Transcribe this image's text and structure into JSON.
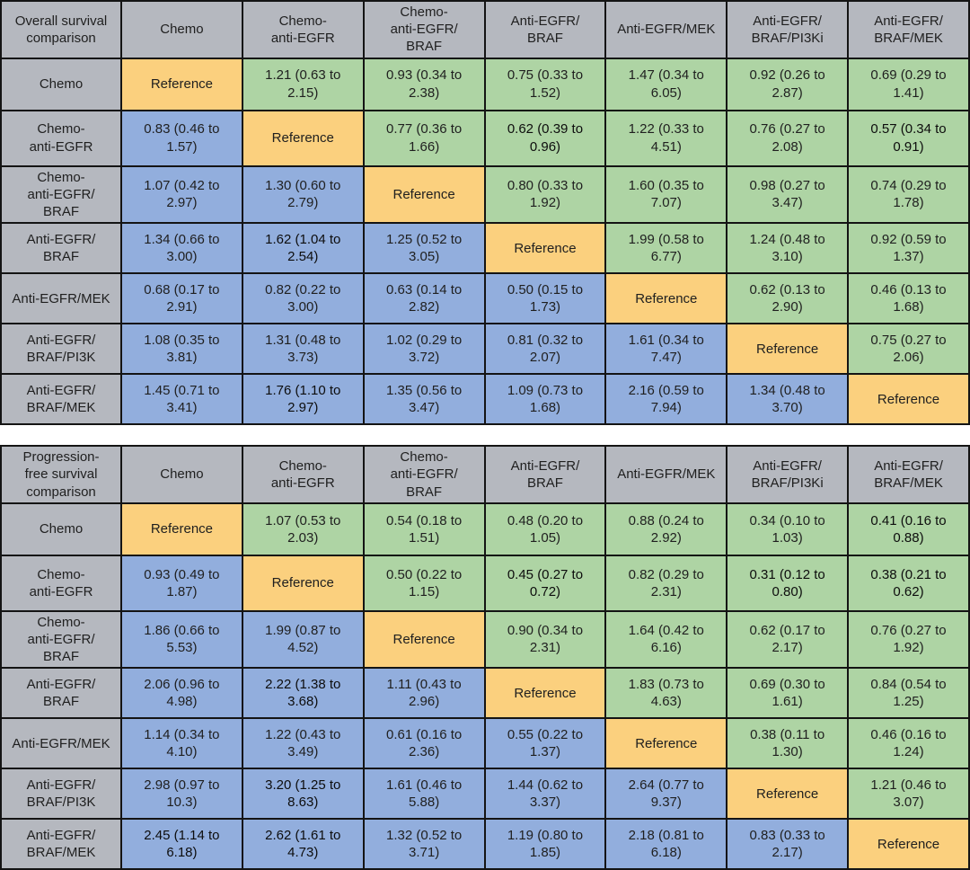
{
  "colors": {
    "header_gray": "#b5b8bf",
    "upper_triangle_green": "#aed4a4",
    "lower_triangle_blue": "#92aedd",
    "reference_orange": "#fbd07e",
    "grid_border": "#141414",
    "text": "#1f1f1f"
  },
  "reference_label": "Reference",
  "chart_data": [
    {
      "type": "table",
      "title": "Overall survival\ncomparison",
      "col_headers": [
        "Chemo",
        "Chemo-\nanti-EGFR",
        "Chemo-\nanti-EGFR/\nBRAF",
        "Anti-EGFR/\nBRAF",
        "Anti-EGFR/MEK",
        "Anti-EGFR/\nBRAF/PI3Ki",
        "Anti-EGFR/\nBRAF/MEK"
      ],
      "row_headers": [
        "Chemo",
        "Chemo-\nanti-EGFR",
        "Chemo-\nanti-EGFR/\nBRAF",
        "Anti-EGFR/\nBRAF",
        "Anti-EGFR/MEK",
        "Anti-EGFR/\nBRAF/PI3K",
        "Anti-EGFR/\nBRAF/MEK"
      ],
      "cells": [
        [
          "Reference",
          "1.21 (0.63 to 2.15)",
          "0.93 (0.34 to 2.38)",
          "0.75 (0.33 to 1.52)",
          "1.47 (0.34 to 6.05)",
          "0.92 (0.26 to 2.87)",
          "0.69 (0.29 to 1.41)"
        ],
        [
          "0.83 (0.46 to 1.57)",
          "Reference",
          "0.77 (0.36 to 1.66)",
          "0.62 (0.39 to 0.96)",
          "1.22 (0.33 to 4.51)",
          "0.76 (0.27 to 2.08)",
          "0.57 (0.34 to 0.91)"
        ],
        [
          "1.07 (0.42 to 2.97)",
          "1.30 (0.60 to 2.79)",
          "Reference",
          "0.80 (0.33 to 1.92)",
          "1.60 (0.35 to 7.07)",
          "0.98 (0.27 to 3.47)",
          "0.74 (0.29 to 1.78)"
        ],
        [
          "1.34 (0.66 to 3.00)",
          "1.62 (1.04 to 2.54)",
          "1.25 (0.52 to 3.05)",
          "Reference",
          "1.99 (0.58 to 6.77)",
          "1.24 (0.48 to 3.10)",
          "0.92 (0.59 to 1.37)"
        ],
        [
          "0.68 (0.17 to 2.91)",
          "0.82 (0.22 to 3.00)",
          "0.63 (0.14 to 2.82)",
          "0.50 (0.15 to 1.73)",
          "Reference",
          "0.62 (0.13 to 2.90)",
          "0.46 (0.13 to 1.68)"
        ],
        [
          "1.08 (0.35 to 3.81)",
          "1.31 (0.48 to 3.73)",
          "1.02 (0.29 to 3.72)",
          "0.81 (0.32 to 2.07)",
          "1.61 (0.34 to 7.47)",
          "Reference",
          "0.75 (0.27 to 2.06)"
        ],
        [
          "1.45 (0.71 to 3.41)",
          "1.76 (1.10 to 2.97)",
          "1.35 (0.56 to 3.47)",
          "1.09 (0.73 to 1.68)",
          "2.16 (0.59 to 7.94)",
          "1.34 (0.48 to 3.70)",
          "Reference"
        ]
      ],
      "bold_cells": [
        [
          1,
          3
        ],
        [
          1,
          6
        ],
        [
          3,
          1
        ],
        [
          6,
          1
        ]
      ]
    },
    {
      "type": "table",
      "title": "Progression-\nfree survival\ncomparison",
      "col_headers": [
        "Chemo",
        "Chemo-\nanti-EGFR",
        "Chemo-\nanti-EGFR/\nBRAF",
        "Anti-EGFR/\nBRAF",
        "Anti-EGFR/MEK",
        "Anti-EGFR/\nBRAF/PI3Ki",
        "Anti-EGFR/\nBRAF/MEK"
      ],
      "row_headers": [
        "Chemo",
        "Chemo-\nanti-EGFR",
        "Chemo-\nanti-EGFR/\nBRAF",
        "Anti-EGFR/\nBRAF",
        "Anti-EGFR/MEK",
        "Anti-EGFR/\nBRAF/PI3K",
        "Anti-EGFR/\nBRAF/MEK"
      ],
      "cells": [
        [
          "Reference",
          "1.07 (0.53 to 2.03)",
          "0.54 (0.18 to 1.51)",
          "0.48 (0.20 to 1.05)",
          "0.88 (0.24 to 2.92)",
          "0.34 (0.10 to 1.03)",
          "0.41 (0.16 to 0.88)"
        ],
        [
          "0.93 (0.49 to 1.87)",
          "Reference",
          "0.50 (0.22 to 1.15)",
          "0.45 (0.27 to 0.72)",
          "0.82 (0.29 to 2.31)",
          "0.31 (0.12 to 0.80)",
          "0.38 (0.21 to 0.62)"
        ],
        [
          "1.86 (0.66 to 5.53)",
          "1.99 (0.87 to 4.52)",
          "Reference",
          "0.90 (0.34 to 2.31)",
          "1.64 (0.42 to 6.16)",
          "0.62 (0.17 to 2.17)",
          "0.76 (0.27 to 1.92)"
        ],
        [
          "2.06 (0.96 to 4.98)",
          "2.22 (1.38 to 3.68)",
          "1.11 (0.43 to 2.96)",
          "Reference",
          "1.83 (0.73 to 4.63)",
          "0.69 (0.30 to 1.61)",
          "0.84 (0.54 to 1.25)"
        ],
        [
          "1.14 (0.34 to 4.10)",
          "1.22 (0.43 to 3.49)",
          "0.61 (0.16 to 2.36)",
          "0.55 (0.22 to 1.37)",
          "Reference",
          "0.38 (0.11 to 1.30)",
          "0.46 (0.16 to 1.24)"
        ],
        [
          "2.98 (0.97 to 10.3)",
          "3.20 (1.25 to 8.63)",
          "1.61 (0.46 to 5.88)",
          "1.44 (0.62 to 3.37)",
          "2.64 (0.77 to 9.37)",
          "Reference",
          "1.21 (0.46 to 3.07)"
        ],
        [
          "2.45 (1.14 to 6.18)",
          "2.62 (1.61 to 4.73)",
          "1.32 (0.52 to 3.71)",
          "1.19 (0.80 to 1.85)",
          "2.18 (0.81 to 6.18)",
          "0.83 (0.33 to 2.17)",
          "Reference"
        ]
      ],
      "bold_cells": [
        [
          0,
          6
        ],
        [
          1,
          3
        ],
        [
          1,
          5
        ],
        [
          1,
          6
        ],
        [
          3,
          1
        ],
        [
          5,
          1
        ],
        [
          6,
          0
        ],
        [
          6,
          1
        ]
      ]
    }
  ]
}
